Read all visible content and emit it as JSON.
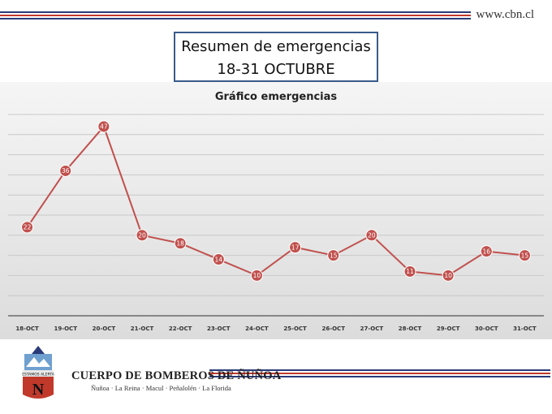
{
  "header": {
    "url": "www.cbn.cl"
  },
  "slide_title": {
    "line1": "Resumen de emergencias",
    "line2": "18-31 OCTUBRE"
  },
  "footer": {
    "org_name": "CUERPO DE BOMBEROS DE ÑUÑOA",
    "communes": "Ñuñoa · La Reina · Macul · Peñalolén · La Florida",
    "emblem_text": "ESTAMOS ALERTA",
    "emblem_letter": "N"
  },
  "colors": {
    "series": "#c0504d",
    "stripe_blue": "#2a3b7a",
    "stripe_red": "#c0392b",
    "title_border": "#3a5a8a"
  },
  "chart_data": {
    "type": "line",
    "title": "Gráfico emergencias",
    "categories": [
      "18-OCT",
      "19-OCT",
      "20-OCT",
      "21-OCT",
      "22-OCT",
      "23-OCT",
      "24-OCT",
      "25-OCT",
      "26-OCT",
      "27-OCT",
      "28-OCT",
      "29-OCT",
      "30-OCT",
      "31-OCT"
    ],
    "series": [
      {
        "values": [
          22,
          36,
          47,
          20,
          18,
          14,
          10,
          17,
          15,
          20,
          11,
          10,
          16,
          15
        ]
      }
    ],
    "ylim": [
      0,
      50
    ],
    "grid": true,
    "data_labels": true
  }
}
